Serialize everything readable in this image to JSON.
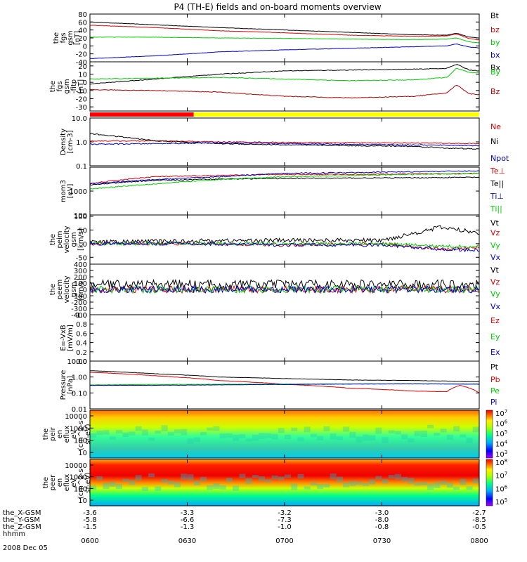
{
  "title": "P4 (TH-E) fields and on-board moments overview",
  "time_axis": {
    "tick_labels": [
      "0600",
      "0630",
      "0700",
      "0730",
      "0800"
    ],
    "tick_minutes": [
      0,
      30,
      60,
      90,
      120
    ],
    "date": "2008 Dec 05",
    "hhmm_label": "hhmm"
  },
  "ephemeris": [
    {
      "label": "the_X-GSM",
      "values": [
        "-3.6",
        "-3.3",
        "-3.2",
        "-3.0",
        "-2.7"
      ]
    },
    {
      "label": "the_Y-GSM",
      "values": [
        "-5.8",
        "-6.6",
        "-7.3",
        "-8.0",
        "-8.5"
      ]
    },
    {
      "label": "the_Z-GSM",
      "values": [
        "-1.5",
        "-1.3",
        "-1.0",
        "-0.8",
        "-0.5"
      ]
    }
  ],
  "colors": {
    "black": "#000000",
    "red": "#dd0000",
    "green": "#00cc00",
    "blue": "#0000cc",
    "darkred": "#aa0000",
    "bar_red": "#ff0000",
    "bar_yellow": "#ffff00"
  },
  "chart_data": [
    {
      "type": "line",
      "ylabel": [
        "the",
        "fgs",
        "gsm",
        "[nT]"
      ],
      "yticks": [
        "80",
        "60",
        "40",
        "20",
        "0",
        "-20",
        "-40"
      ],
      "ylim": [
        -40,
        80
      ],
      "series": [
        {
          "name": "Bt",
          "color": "black",
          "x": [
            0,
            20,
            40,
            60,
            80,
            100,
            110,
            113,
            117,
            120
          ],
          "y": [
            60,
            53,
            46,
            40,
            34,
            28,
            27,
            32,
            22,
            20
          ]
        },
        {
          "name": "bz",
          "color": "red",
          "x": [
            0,
            20,
            40,
            60,
            80,
            100,
            110,
            113,
            117,
            120
          ],
          "y": [
            52,
            46,
            38,
            33,
            27,
            24,
            25,
            30,
            18,
            15
          ]
        },
        {
          "name": "by",
          "color": "green",
          "x": [
            0,
            20,
            40,
            60,
            80,
            100,
            110,
            113,
            117,
            120
          ],
          "y": [
            22,
            22,
            20,
            19,
            17,
            16,
            17,
            20,
            10,
            8
          ]
        },
        {
          "name": "bx",
          "color": "blue",
          "x": [
            0,
            20,
            40,
            60,
            80,
            100,
            110,
            113,
            117,
            120
          ],
          "y": [
            -32,
            -25,
            -15,
            -10,
            -6,
            -2,
            0,
            5,
            -3,
            -5
          ]
        }
      ]
    },
    {
      "type": "line",
      "ylabel": [
        "the",
        "fgs",
        "gsm",
        "-fitp",
        "[nT]"
      ],
      "yticks": [
        "20",
        "10",
        "0",
        "-10",
        "-20",
        "-30"
      ],
      "ylim": [
        -35,
        25
      ],
      "series": [
        {
          "name": "Bx",
          "color": "black",
          "x": [
            0,
            20,
            40,
            60,
            80,
            100,
            110,
            113,
            117,
            120
          ],
          "y": [
            -2,
            4,
            10,
            14,
            15,
            16,
            17,
            22,
            15,
            14
          ]
        },
        {
          "name": "By",
          "color": "green",
          "x": [
            0,
            20,
            40,
            60,
            80,
            100,
            110,
            113,
            117,
            120
          ],
          "y": [
            4,
            5,
            6,
            4,
            2,
            3,
            6,
            17,
            12,
            11
          ]
        },
        {
          "name": "Bz",
          "color": "darkred",
          "x": [
            0,
            20,
            40,
            60,
            80,
            100,
            110,
            113,
            117,
            120
          ],
          "y": [
            -9,
            -10,
            -12,
            -17,
            -19,
            -17,
            -13,
            -3,
            -14,
            -15
          ]
        }
      ]
    },
    {
      "type": "bar",
      "mode_bar": [
        {
          "from": 0,
          "to": 32,
          "color": "bar_red"
        },
        {
          "from": 32,
          "to": 120,
          "color": "bar_yellow"
        }
      ]
    },
    {
      "type": "line",
      "ylabel": [
        "Density",
        "[cm-3]"
      ],
      "yticks": [
        "10.0",
        "1.0",
        "0.1"
      ],
      "ylim": [
        0.1,
        10
      ],
      "log": true,
      "series": [
        {
          "name": "Ne",
          "color": "red",
          "x": [
            0,
            20,
            40,
            60,
            80,
            100,
            120
          ],
          "y": [
            1.1,
            1.1,
            1.0,
            0.95,
            0.92,
            0.9,
            0.85
          ]
        },
        {
          "name": "Ni",
          "color": "black",
          "x": [
            0,
            10,
            20,
            40,
            60,
            80,
            100,
            110,
            120
          ],
          "y": [
            2.2,
            1.6,
            1.1,
            0.85,
            0.75,
            0.7,
            0.65,
            0.55,
            0.5
          ]
        },
        {
          "name": "Npot",
          "color": "blue",
          "x": [
            0,
            20,
            40,
            60,
            80,
            100,
            120
          ],
          "y": [
            0.8,
            0.85,
            0.9,
            0.85,
            0.8,
            0.75,
            0.7
          ]
        }
      ]
    },
    {
      "type": "line",
      "ylabel": [
        "mom3",
        "[eV]"
      ],
      "yticks": [
        "1000",
        "100"
      ],
      "ylim": [
        100,
        10000
      ],
      "log": true,
      "series": [
        {
          "name": "Te⊥",
          "color": "red",
          "x": [
            0,
            20,
            40,
            60,
            80,
            100,
            120
          ],
          "y": [
            2000,
            4000,
            4500,
            5000,
            5000,
            5200,
            5500
          ]
        },
        {
          "name": "Te||",
          "color": "black",
          "x": [
            0,
            20,
            40,
            60,
            80,
            100,
            120
          ],
          "y": [
            1800,
            2800,
            3200,
            3400,
            3500,
            3600,
            3800
          ]
        },
        {
          "name": "Ti⊥",
          "color": "blue",
          "x": [
            0,
            20,
            40,
            60,
            80,
            100,
            120
          ],
          "y": [
            2000,
            3000,
            4000,
            5500,
            6000,
            6500,
            7000
          ]
        },
        {
          "name": "Ti||",
          "color": "green",
          "x": [
            0,
            20,
            40,
            60,
            80,
            100,
            120
          ],
          "y": [
            1200,
            2000,
            3000,
            4000,
            4500,
            5000,
            5500
          ]
        }
      ]
    },
    {
      "type": "line",
      "ylabel": [
        "the",
        "peim",
        "velocity",
        "gsm",
        "[km/s]"
      ],
      "yticks": [
        "100",
        "50",
        "0",
        "-50"
      ],
      "ylim": [
        -75,
        105
      ],
      "series": [
        {
          "name": "Vt",
          "color": "black",
          "x": [
            0,
            30,
            60,
            90,
            108,
            120
          ],
          "y": [
            5,
            10,
            12,
            12,
            60,
            40
          ]
        },
        {
          "name": "Vz",
          "color": "red",
          "x": [
            0,
            30,
            60,
            90,
            108,
            120
          ],
          "y": [
            0,
            0,
            -5,
            0,
            -20,
            -15
          ]
        },
        {
          "name": "Vy",
          "color": "green",
          "x": [
            0,
            30,
            60,
            90,
            108,
            120
          ],
          "y": [
            0,
            0,
            0,
            0,
            -10,
            -10
          ]
        },
        {
          "name": "Vx",
          "color": "blue",
          "x": [
            0,
            30,
            60,
            90,
            108,
            120
          ],
          "y": [
            0,
            0,
            -5,
            -5,
            -20,
            -25
          ]
        }
      ]
    },
    {
      "type": "line",
      "ylabel": [
        "the",
        "peem",
        "velocity",
        "gsm",
        "[km/s]"
      ],
      "yticks": [
        "400",
        "300",
        "200",
        "100",
        "0",
        "-100",
        "-200",
        "-300",
        "-400"
      ],
      "ylim": [
        -400,
        400
      ],
      "series": [
        {
          "name": "Vt",
          "color": "black",
          "x": [
            0,
            120
          ],
          "y": [
            80,
            80
          ]
        },
        {
          "name": "Vz",
          "color": "red",
          "x": [
            0,
            120
          ],
          "y": [
            0,
            0
          ]
        },
        {
          "name": "Vy",
          "color": "green",
          "x": [
            0,
            120
          ],
          "y": [
            0,
            0
          ]
        },
        {
          "name": "Vx",
          "color": "blue",
          "x": [
            0,
            120
          ],
          "y": [
            0,
            0
          ]
        }
      ]
    },
    {
      "type": "line",
      "ylabel": [
        "E=-VxB",
        "[mV/m]"
      ],
      "yticks": [
        "1.0",
        "0.8",
        "0.6",
        "0.4",
        "0.2",
        "0.0"
      ],
      "ylim": [
        0,
        1
      ],
      "series": [
        {
          "name": "Ez",
          "color": "red",
          "x": [],
          "y": []
        },
        {
          "name": "Ey",
          "color": "green",
          "x": [],
          "y": []
        },
        {
          "name": "Ex",
          "color": "blue",
          "x": [],
          "y": []
        }
      ]
    },
    {
      "type": "line",
      "ylabel": [
        "Pressure",
        "[nPa]"
      ],
      "yticks": [
        "10.00",
        "1.00",
        "0.10",
        "0.01"
      ],
      "ylim": [
        0.01,
        10
      ],
      "log": true,
      "series": [
        {
          "name": "Pt",
          "color": "black",
          "x": [
            0,
            20,
            40,
            60,
            80,
            100,
            110,
            120
          ],
          "y": [
            2.5,
            1.6,
            1.0,
            0.8,
            0.65,
            0.6,
            0.55,
            0.5
          ]
        },
        {
          "name": "Pb",
          "color": "red",
          "x": [
            0,
            20,
            40,
            60,
            80,
            100,
            110,
            114,
            120
          ],
          "y": [
            2.0,
            1.2,
            0.6,
            0.35,
            0.2,
            0.13,
            0.12,
            0.3,
            0.1
          ]
        },
        {
          "name": "Pe",
          "color": "green",
          "x": [
            0,
            20,
            40,
            60,
            80,
            100,
            120
          ],
          "y": [
            0.32,
            0.34,
            0.35,
            0.36,
            0.37,
            0.38,
            0.35
          ]
        },
        {
          "name": "Pi",
          "color": "blue",
          "x": [
            0,
            20,
            40,
            60,
            80,
            100,
            120
          ],
          "y": [
            0.3,
            0.3,
            0.32,
            0.34,
            0.36,
            0.37,
            0.36
          ]
        }
      ]
    },
    {
      "type": "heatmap",
      "ylabel": [
        "the",
        "peir",
        "en",
        "eflux",
        "eV",
        "(cm^2-s-",
        "sr-eV)"
      ],
      "yticks": [
        "10000",
        "1000",
        "100",
        "10"
      ],
      "colorbar_ticks": [
        "10^7",
        "10^6",
        "10^5",
        "10^4",
        "10^3"
      ]
    },
    {
      "type": "heatmap",
      "ylabel": [
        "the",
        "peer",
        "en",
        "eflux",
        "eV",
        "(cm^2-s-",
        "sr-eV)"
      ],
      "yticks": [
        "10000",
        "1000",
        "100",
        "10"
      ],
      "colorbar_ticks": [
        "10^8",
        "10^7",
        "10^6",
        "10^5"
      ]
    }
  ]
}
